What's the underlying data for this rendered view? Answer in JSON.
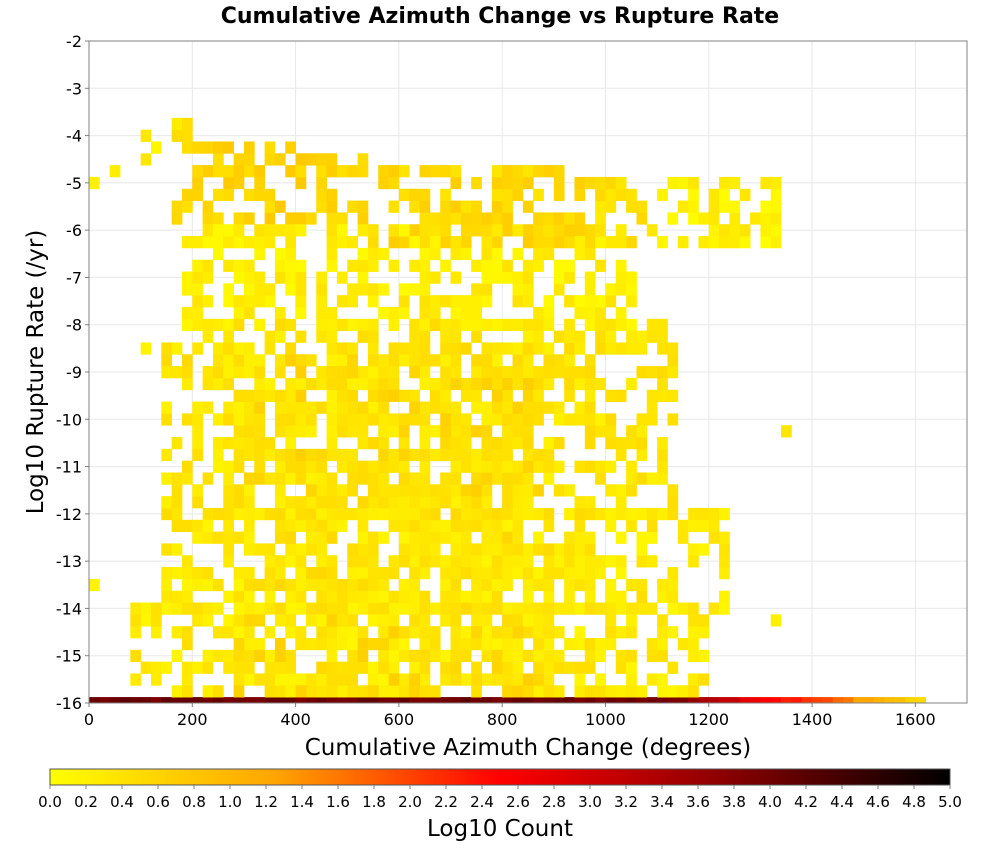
{
  "chart_data": {
    "type": "heatmap",
    "title": "Cumulative Azimuth Change vs Rupture Rate",
    "xlabel": "Cumulative Azimuth Change (degrees)",
    "ylabel": "Log10 Rupture Rate (/yr)",
    "xlim": [
      0,
      1700
    ],
    "ylim": [
      -16,
      -2
    ],
    "x_ticks": [
      "0",
      "200",
      "400",
      "600",
      "800",
      "1000",
      "1200",
      "1400",
      "1600"
    ],
    "y_ticks": [
      "-16",
      "-15",
      "-14",
      "-13",
      "-12",
      "-11",
      "-10",
      "-9",
      "-8",
      "-7",
      "-6",
      "-5",
      "-4",
      "-3",
      "-2"
    ],
    "grid": true,
    "bin_width_x": 20,
    "bin_height_y": 0.25,
    "colorbar": {
      "label": "Log10 Count",
      "range": [
        0,
        5
      ],
      "ticks": [
        "0.0",
        "0.2",
        "0.4",
        "0.6",
        "0.8",
        "1.0",
        "1.2",
        "1.4",
        "1.6",
        "1.8",
        "2.0",
        "2.2",
        "2.4",
        "2.6",
        "2.8",
        "3.0",
        "3.2",
        "3.4",
        "3.6",
        "3.8",
        "4.0",
        "4.2",
        "4.4",
        "4.6",
        "4.8",
        "5.0"
      ],
      "colors": [
        "#ffff00",
        "#ffa500",
        "#ff0000",
        "#8b0000",
        "#000000"
      ]
    },
    "bottom_row": {
      "y": -16,
      "x_start": 0,
      "x_end": 1620,
      "log10_counts_by_x": [
        [
          0,
          4.0
        ],
        [
          1100,
          4.0
        ],
        [
          1200,
          3.4
        ],
        [
          1300,
          2.6
        ],
        [
          1400,
          2.0
        ],
        [
          1500,
          1.2
        ],
        [
          1620,
          0.4
        ]
      ]
    },
    "regions": [
      {
        "x": [
          0,
          20
        ],
        "y": [
          -5.25,
          -4.75
        ],
        "value": 0.15
      },
      {
        "x": [
          40,
          60
        ],
        "y": [
          -5.0,
          -4.5
        ],
        "value": 0.15
      },
      {
        "x": [
          100,
          140
        ],
        "y": [
          -4.5,
          -4.0
        ],
        "value": 0.2
      },
      {
        "x": [
          140,
          200
        ],
        "y": [
          -4.25,
          -3.75
        ],
        "value": 0.3
      },
      {
        "x": [
          160,
          540
        ],
        "y": [
          -5.75,
          -4.25
        ],
        "value": 0.55
      },
      {
        "x": [
          540,
          960
        ],
        "y": [
          -6.25,
          -4.75
        ],
        "value": 0.5
      },
      {
        "x": [
          960,
          1100
        ],
        "y": [
          -6.25,
          -5.0
        ],
        "value": 0.35
      },
      {
        "x": [
          1100,
          1340
        ],
        "y": [
          -6.25,
          -5.0
        ],
        "value": 0.15
      },
      {
        "x": [
          180,
          1060
        ],
        "y": [
          -8.0,
          -6.0
        ],
        "value": 0.2
      },
      {
        "x": [
          140,
          1140
        ],
        "y": [
          -12.0,
          -8.0
        ],
        "value": 0.3
      },
      {
        "x": [
          300,
          900
        ],
        "y": [
          -11.5,
          -8.5
        ],
        "value": 0.45
      },
      {
        "x": [
          140,
          1240
        ],
        "y": [
          -14.0,
          -12.0
        ],
        "value": 0.25
      },
      {
        "x": [
          300,
          900
        ],
        "y": [
          -14.0,
          -11.75
        ],
        "value": 0.35
      },
      {
        "x": [
          80,
          1200
        ],
        "y": [
          -15.75,
          -14.0
        ],
        "value": 0.25
      },
      {
        "x": [
          280,
          900
        ],
        "y": [
          -15.75,
          -14.25
        ],
        "value": 0.45
      }
    ],
    "outliers": [
      {
        "x": 1340,
        "y": -10.25,
        "value": 0.35
      },
      {
        "x": 1320,
        "y": -14.25,
        "value": 0.2
      },
      {
        "x": 1240,
        "y": -5.5,
        "value": 0.1
      },
      {
        "x": 1220,
        "y": -12.5,
        "value": 0.15
      },
      {
        "x": 0,
        "y": -13.5,
        "value": 0.15
      },
      {
        "x": 100,
        "y": -8.5,
        "value": 0.15
      }
    ]
  }
}
